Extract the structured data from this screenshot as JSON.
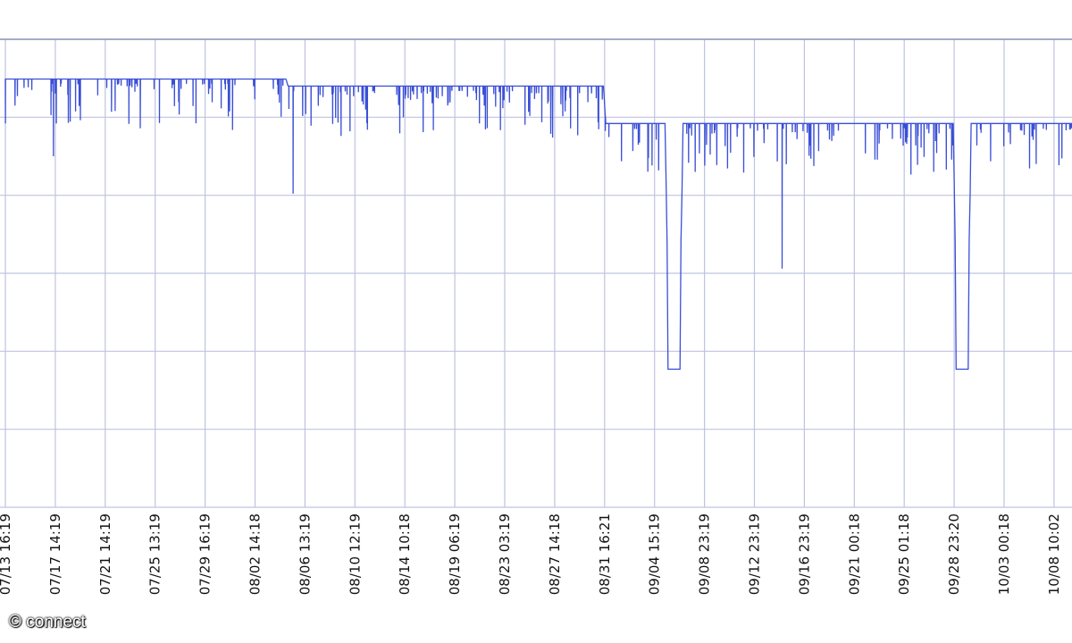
{
  "chart_data": {
    "type": "line",
    "title": "",
    "xlabel": "",
    "ylabel": "",
    "grid": true,
    "colors": {
      "line": "#3a4fd6",
      "grid": "#bfc3e0",
      "background": "#ffffff"
    },
    "x_ticks": [
      "07/13 16:19",
      "07/17 14:19",
      "07/21 14:19",
      "07/25 13:19",
      "07/29 16:19",
      "08/02 14:18",
      "08/06 13:19",
      "08/10 12:19",
      "08/14 10:18",
      "08/19 06:19",
      "08/23 03:19",
      "08/27 14:18",
      "08/31 16:21",
      "09/04 15:19",
      "09/08 23:19",
      "09/12 23:19",
      "09/16 23:19",
      "09/21 00:18",
      "09/25 01:18",
      "09/28 23:20",
      "10/03 00:18",
      "10/08 10:02"
    ],
    "series": [
      {
        "baseline": [
          {
            "x": 0.0,
            "y": 0.915
          },
          {
            "x": 5.62,
            "y": 0.915
          },
          {
            "x": 5.66,
            "y": 0.9
          },
          {
            "x": 11.98,
            "y": 0.9
          },
          {
            "x": 12.02,
            "y": 0.82
          },
          {
            "x": 22.0,
            "y": 0.82
          }
        ],
        "outages": [
          {
            "x_start": 13.27,
            "x_end": 13.51,
            "y_low": 0.295,
            "y_shoulder": 0.57
          },
          {
            "x_start": 19.04,
            "x_end": 19.28,
            "y_low": 0.295,
            "y_shoulder": 0.57
          }
        ],
        "dips": [
          {
            "x": 0.95,
            "y": 0.75
          },
          {
            "x": 2.7,
            "y": 0.81
          },
          {
            "x": 5.75,
            "y": 0.67
          },
          {
            "x": 10.95,
            "y": 0.79
          },
          {
            "x": 13.07,
            "y": 0.72
          },
          {
            "x": 14.0,
            "y": 0.73
          },
          {
            "x": 15.55,
            "y": 0.51
          },
          {
            "x": 16.05,
            "y": 0.8
          },
          {
            "x": 18.05,
            "y": 0.79
          }
        ]
      }
    ],
    "watermark": "© connect"
  }
}
